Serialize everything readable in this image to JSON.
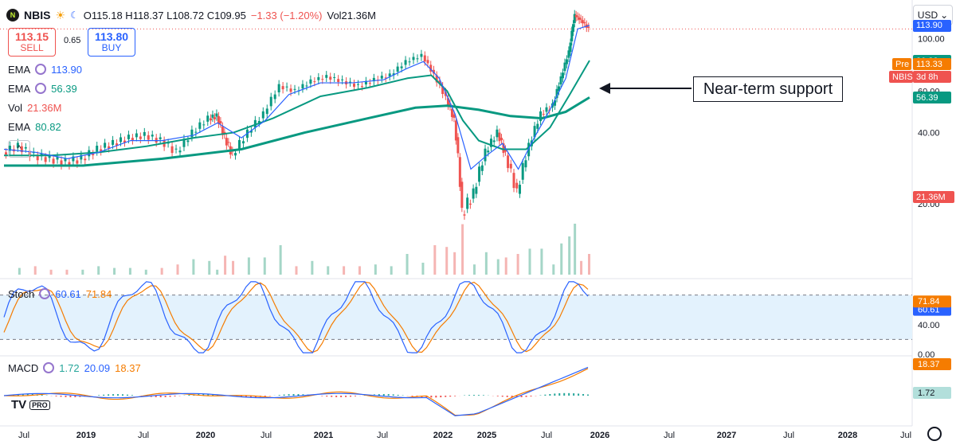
{
  "header": {
    "symbol": "NBIS",
    "icon_text": "N",
    "ohlc_text": "O115.18 H118.37 L108.72 C109.95",
    "change_text": "−1.33 (−1.20%)",
    "vol_text": "Vol21.36M"
  },
  "trade": {
    "sell_price": "113.15",
    "sell_label": "SELL",
    "spread": "0.65",
    "buy_price": "113.80",
    "buy_label": "BUY"
  },
  "indicators": [
    {
      "name": "EMA",
      "value": "113.90",
      "color": "#2962ff"
    },
    {
      "name": "EMA",
      "value": "56.39",
      "color": "#089981"
    },
    {
      "name": "Vol",
      "value": "21.36M",
      "color": "#ef5350"
    },
    {
      "name": "EMA",
      "value": "80.82",
      "color": "#089981"
    }
  ],
  "collapse_glyph": "^",
  "currency": "USD",
  "currency_glyph": "⌄",
  "logo": {
    "text": "TV",
    "badge": "PRO"
  },
  "annotation": "Near-term support",
  "price_labels": [
    {
      "text": "113.90",
      "color": "#2962ff",
      "y": 113.9
    },
    {
      "text": "80.82",
      "color": "#089981",
      "y": 80.82
    },
    {
      "text": "56.39",
      "color": "#089981",
      "y": 56.39
    },
    {
      "text": "21.36M",
      "color": "#ef5350",
      "y": 21.36
    }
  ],
  "pre_label": {
    "tag": "Pre",
    "value": "113.33",
    "color": "#f57c00"
  },
  "nbis_label": {
    "tag": "NBIS",
    "value": "3d 8h",
    "color": "#ef5350"
  },
  "colors": {
    "up": "#089981",
    "down": "#ef5350",
    "ema_fast": "#2962ff",
    "ema_slow": "#089981",
    "stoch_k": "#2962ff",
    "stoch_d": "#f57c00"
  },
  "chart_data": {
    "type": "candlestick",
    "price_axis": {
      "ticks": [
        20,
        40,
        60,
        100
      ],
      "labels": [
        "20.00",
        "40.00",
        "60.00",
        "100.00"
      ],
      "ylim": [
        10,
        135
      ]
    },
    "x_axis": {
      "labels": [
        "Jul",
        "2019",
        "Jul",
        "2020",
        "Jul",
        "2021",
        "Jul",
        "2022",
        "2025",
        "Jul",
        "2026",
        "Jul",
        "2027",
        "Jul",
        "2028",
        "Jul"
      ]
    },
    "price_close": [
      {
        "x": 0,
        "y": 33
      },
      {
        "x": 20,
        "y": 35
      },
      {
        "x": 40,
        "y": 32
      },
      {
        "x": 60,
        "y": 31
      },
      {
        "x": 80,
        "y": 30
      },
      {
        "x": 100,
        "y": 31
      },
      {
        "x": 120,
        "y": 34
      },
      {
        "x": 140,
        "y": 36
      },
      {
        "x": 160,
        "y": 38
      },
      {
        "x": 180,
        "y": 39
      },
      {
        "x": 200,
        "y": 37
      },
      {
        "x": 220,
        "y": 33
      },
      {
        "x": 240,
        "y": 40
      },
      {
        "x": 260,
        "y": 46
      },
      {
        "x": 270,
        "y": 47
      },
      {
        "x": 280,
        "y": 38
      },
      {
        "x": 290,
        "y": 32
      },
      {
        "x": 310,
        "y": 40
      },
      {
        "x": 330,
        "y": 48
      },
      {
        "x": 350,
        "y": 63
      },
      {
        "x": 370,
        "y": 60
      },
      {
        "x": 390,
        "y": 66
      },
      {
        "x": 410,
        "y": 69
      },
      {
        "x": 430,
        "y": 66
      },
      {
        "x": 450,
        "y": 63
      },
      {
        "x": 470,
        "y": 67
      },
      {
        "x": 490,
        "y": 70
      },
      {
        "x": 510,
        "y": 80
      },
      {
        "x": 530,
        "y": 85
      },
      {
        "x": 545,
        "y": 70
      },
      {
        "x": 560,
        "y": 56
      },
      {
        "x": 570,
        "y": 45
      },
      {
        "x": 580,
        "y": 18
      },
      {
        "x": 595,
        "y": 22
      },
      {
        "x": 610,
        "y": 33
      },
      {
        "x": 625,
        "y": 40
      },
      {
        "x": 635,
        "y": 32
      },
      {
        "x": 650,
        "y": 22
      },
      {
        "x": 665,
        "y": 35
      },
      {
        "x": 680,
        "y": 48
      },
      {
        "x": 695,
        "y": 52
      },
      {
        "x": 705,
        "y": 68
      },
      {
        "x": 715,
        "y": 88
      },
      {
        "x": 722,
        "y": 126
      },
      {
        "x": 730,
        "y": 120
      },
      {
        "x": 740,
        "y": 110
      }
    ],
    "ema_fast_line": [
      {
        "x": 0,
        "y": 34
      },
      {
        "x": 40,
        "y": 33
      },
      {
        "x": 80,
        "y": 31
      },
      {
        "x": 120,
        "y": 33
      },
      {
        "x": 160,
        "y": 37
      },
      {
        "x": 200,
        "y": 37
      },
      {
        "x": 240,
        "y": 39
      },
      {
        "x": 270,
        "y": 44
      },
      {
        "x": 300,
        "y": 38
      },
      {
        "x": 330,
        "y": 45
      },
      {
        "x": 360,
        "y": 58
      },
      {
        "x": 400,
        "y": 65
      },
      {
        "x": 440,
        "y": 65
      },
      {
        "x": 480,
        "y": 67
      },
      {
        "x": 510,
        "y": 75
      },
      {
        "x": 530,
        "y": 80
      },
      {
        "x": 550,
        "y": 68
      },
      {
        "x": 570,
        "y": 48
      },
      {
        "x": 590,
        "y": 28
      },
      {
        "x": 610,
        "y": 32
      },
      {
        "x": 630,
        "y": 36
      },
      {
        "x": 650,
        "y": 28
      },
      {
        "x": 670,
        "y": 38
      },
      {
        "x": 690,
        "y": 50
      },
      {
        "x": 710,
        "y": 68
      },
      {
        "x": 725,
        "y": 110
      },
      {
        "x": 740,
        "y": 113.9
      }
    ],
    "ema_mid_line": [
      {
        "x": 0,
        "y": 32
      },
      {
        "x": 60,
        "y": 32
      },
      {
        "x": 120,
        "y": 33
      },
      {
        "x": 180,
        "y": 35
      },
      {
        "x": 240,
        "y": 38
      },
      {
        "x": 290,
        "y": 40
      },
      {
        "x": 340,
        "y": 46
      },
      {
        "x": 400,
        "y": 57
      },
      {
        "x": 460,
        "y": 62
      },
      {
        "x": 510,
        "y": 68
      },
      {
        "x": 540,
        "y": 70
      },
      {
        "x": 560,
        "y": 60
      },
      {
        "x": 580,
        "y": 45
      },
      {
        "x": 600,
        "y": 37
      },
      {
        "x": 630,
        "y": 34
      },
      {
        "x": 660,
        "y": 34
      },
      {
        "x": 690,
        "y": 42
      },
      {
        "x": 715,
        "y": 58
      },
      {
        "x": 740,
        "y": 80.82
      }
    ],
    "ema_slow_line": [
      {
        "x": 0,
        "y": 29
      },
      {
        "x": 100,
        "y": 29
      },
      {
        "x": 200,
        "y": 31
      },
      {
        "x": 300,
        "y": 34
      },
      {
        "x": 380,
        "y": 40
      },
      {
        "x": 460,
        "y": 46
      },
      {
        "x": 520,
        "y": 51
      },
      {
        "x": 560,
        "y": 52
      },
      {
        "x": 600,
        "y": 50
      },
      {
        "x": 640,
        "y": 47
      },
      {
        "x": 680,
        "y": 46
      },
      {
        "x": 710,
        "y": 49
      },
      {
        "x": 740,
        "y": 56.39
      }
    ],
    "stoch": {
      "range": [
        0,
        100
      ],
      "levels": [
        80,
        20
      ],
      "labels": [
        "40.00",
        "0.00"
      ],
      "k": 60.61,
      "d": 71.84
    },
    "macd": {
      "macd": 20.09,
      "signal": 18.37,
      "hist": 1.72
    },
    "last_price": 109.95
  }
}
